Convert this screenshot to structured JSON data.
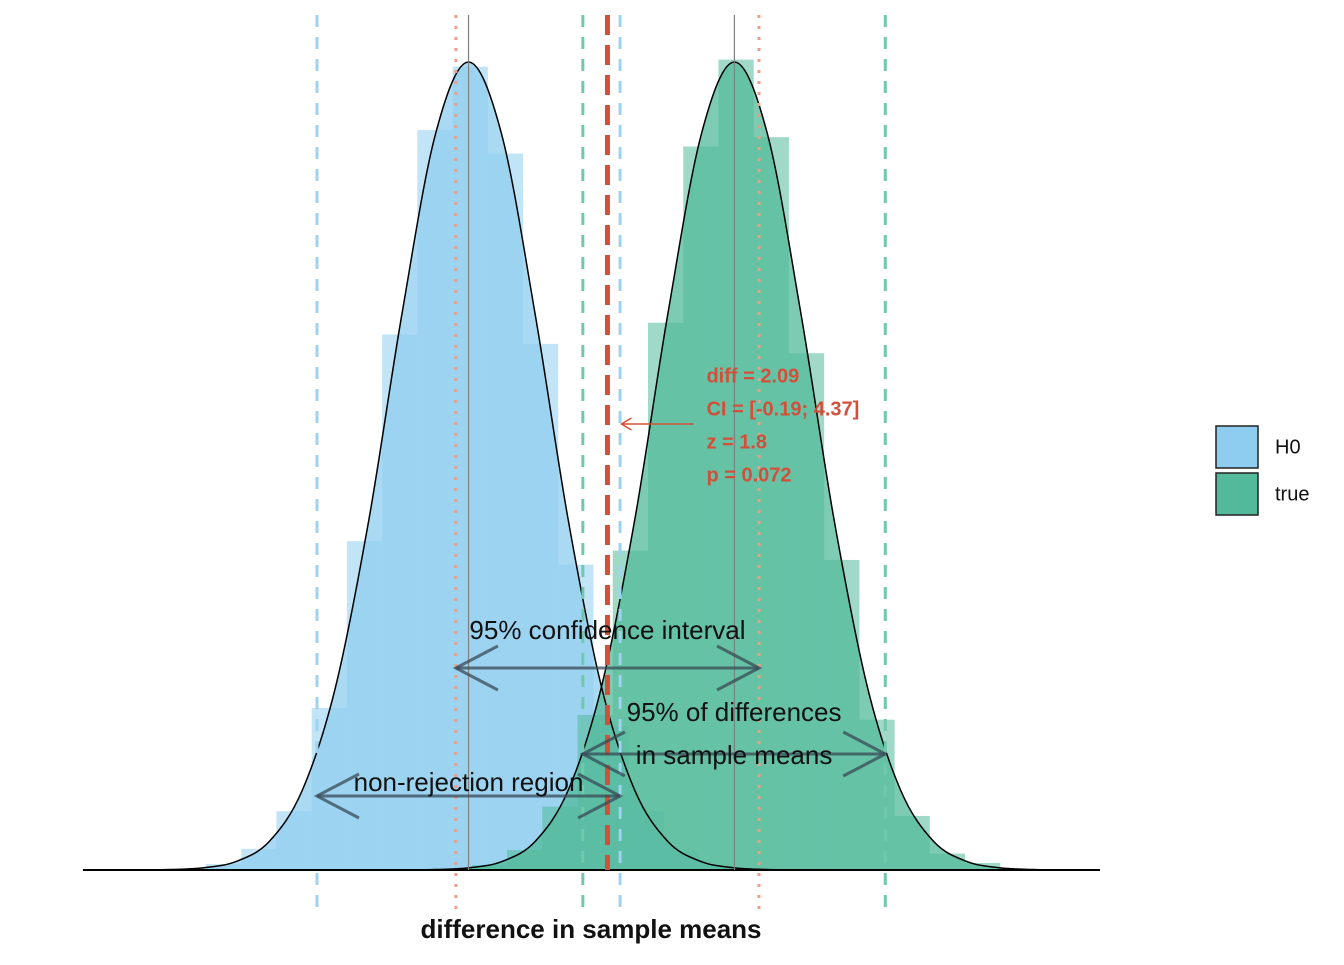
{
  "chart_data": {
    "type": "histogram",
    "x_label": "difference in sample means",
    "xlim": [
      -5.8,
      9.5
    ],
    "ylim": [
      0,
      0.364
    ],
    "series": [
      {
        "name": "H0",
        "color": "#8ecdef",
        "bins": [
          -3.95,
          -3.42,
          -2.89,
          -2.36,
          -1.83,
          -1.3,
          -0.77,
          -0.24,
          0.29,
          0.82,
          1.35,
          1.88,
          2.41,
          2.94,
          3.47,
          4.0
        ],
        "values": [
          0.0025,
          0.009,
          0.025,
          0.069,
          0.14,
          0.228,
          0.315,
          0.342,
          0.305,
          0.224,
          0.13,
          0.061,
          0.025,
          0.008,
          0.002
        ],
        "density_x": [
          -5.5,
          -5,
          -4.5,
          -4,
          -3.5,
          -3,
          -2.5,
          -2,
          -1.5,
          -1,
          -0.5,
          0,
          0.5,
          1,
          1.5,
          2,
          2.5,
          3,
          3.5,
          4,
          4.5,
          5,
          5.5
        ],
        "density_y": [
          0,
          0,
          0.0002,
          0.0009,
          0.0036,
          0.0121,
          0.034,
          0.078,
          0.149,
          0.237,
          0.313,
          0.344,
          0.313,
          0.237,
          0.149,
          0.078,
          0.034,
          0.0121,
          0.0036,
          0.0009,
          0.0002,
          0,
          0
        ]
      },
      {
        "name": "true",
        "color": "#52b99a",
        "bins": [
          0.05,
          0.58,
          1.11,
          1.64,
          2.17,
          2.7,
          3.23,
          3.76,
          4.29,
          4.82,
          5.35,
          5.88,
          6.41,
          6.94,
          7.47,
          8.0
        ],
        "values": [
          0.002,
          0.0085,
          0.027,
          0.066,
          0.136,
          0.233,
          0.308,
          0.345,
          0.312,
          0.22,
          0.132,
          0.064,
          0.023,
          0.007,
          0.003
        ],
        "density_x": [
          -1.5,
          -1,
          -0.5,
          0,
          0.5,
          1,
          1.5,
          2,
          2.5,
          3,
          3.5,
          4,
          4.5,
          5,
          5.5,
          6,
          6.5,
          7,
          7.5,
          8,
          8.5,
          9,
          9.5
        ],
        "density_y": [
          0,
          0,
          0.0002,
          0.0009,
          0.0036,
          0.0121,
          0.034,
          0.078,
          0.149,
          0.237,
          0.313,
          0.344,
          0.313,
          0.237,
          0.149,
          0.078,
          0.034,
          0.0121,
          0.0036,
          0.0009,
          0.0002,
          0,
          0
        ]
      }
    ],
    "vlines": [
      {
        "x": -2.28,
        "color": "#9ed3ee",
        "style": "dashed"
      },
      {
        "x": 2.28,
        "color": "#9ed3ee",
        "style": "dashed"
      },
      {
        "x": 1.72,
        "color": "#6fc9ab",
        "style": "dashed"
      },
      {
        "x": 6.27,
        "color": "#6fc9ab",
        "style": "dashed"
      },
      {
        "x": -0.19,
        "color": "#e8a08a",
        "style": "dotted"
      },
      {
        "x": 4.37,
        "color": "#e8a08a",
        "style": "dotted"
      },
      {
        "x": 0,
        "color": "#808080",
        "style": "solid"
      },
      {
        "x": 4,
        "color": "#808080",
        "style": "solid"
      },
      {
        "x": 2.09,
        "color": "#d2503a",
        "style": "thick-dashed"
      }
    ],
    "interval_labels": [
      [
        "95% confidence interval"
      ],
      [
        "95% of differences",
        "in sample means"
      ],
      [
        "non-rejection region"
      ]
    ],
    "annotation_color": "#d2503a",
    "annotation_lines": [
      "diff = 2.09",
      "CI = [-0.19; 4.37]",
      "z = 1.8",
      "p = 0.072"
    ]
  }
}
